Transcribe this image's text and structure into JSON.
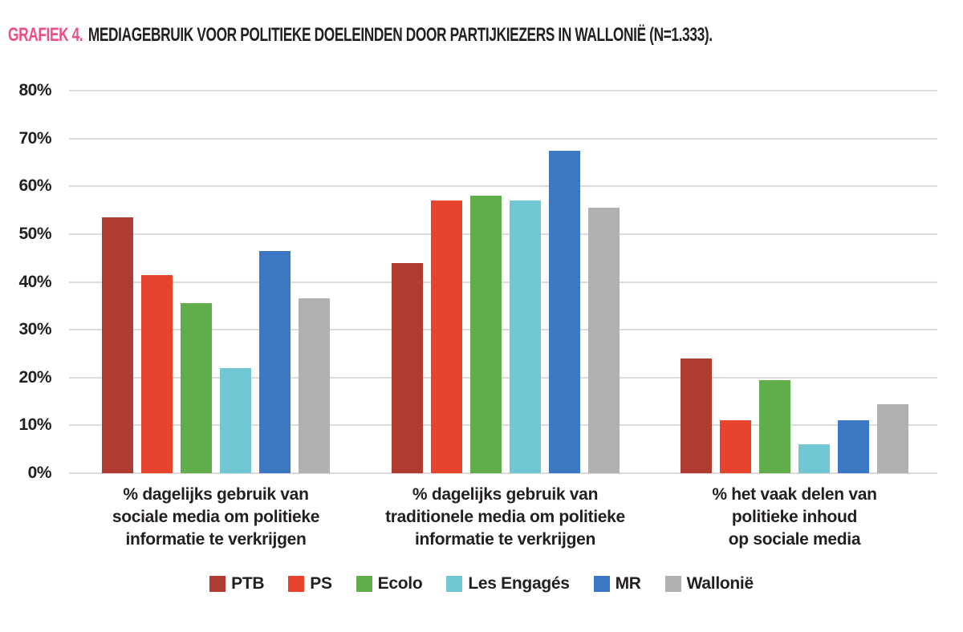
{
  "title": {
    "prefix": "GRAFIEK 4.",
    "text": "MEDIAGEBRUIK VOOR POLITIEKE DOELEINDEN DOOR PARTIJKIEZERS IN WALLONIË (N=1.333).",
    "prefix_color": "#ee4e86"
  },
  "chart_data": {
    "type": "bar",
    "title": "GRAFIEK 4. MEDIAGEBRUIK VOOR POLITIEKE DOELEINDEN DOOR PARTIJKIEZERS IN WALLONIË (N=1.333).",
    "categories": [
      "% dagelijks gebruik van sociale media om politieke informatie te verkrijgen",
      "% dagelijks gebruik van traditionele media om politieke informatie te verkrijgen",
      "% het vaak delen van politieke inhoud op sociale media"
    ],
    "category_lines": [
      [
        "% dagelijks gebruik van",
        "sociale media om politieke",
        "informatie te verkrijgen"
      ],
      [
        "% dagelijks gebruik van",
        "traditionele media om politieke",
        "informatie te verkrijgen"
      ],
      [
        "% het vaak delen van",
        "politieke inhoud",
        "op sociale media"
      ]
    ],
    "series": [
      {
        "name": "PTB",
        "color": "#af3b31",
        "values": [
          53.5,
          44.0,
          24.0
        ]
      },
      {
        "name": "PS",
        "color": "#e8432d",
        "values": [
          41.5,
          57.0,
          11.0
        ]
      },
      {
        "name": "Ecolo",
        "color": "#5fae4a",
        "values": [
          35.5,
          58.0,
          19.5
        ]
      },
      {
        "name": "Les Engagés",
        "color": "#72c7d4",
        "values": [
          22.0,
          57.0,
          6.0
        ]
      },
      {
        "name": "MR",
        "color": "#3d76c3",
        "values": [
          46.5,
          67.5,
          11.0
        ]
      },
      {
        "name": "Wallonië",
        "color": "#b1b1b1",
        "values": [
          36.5,
          55.5,
          14.5
        ]
      }
    ],
    "xlabel": "",
    "ylabel": "",
    "ylim": [
      0,
      80
    ],
    "yticks": [
      "0%",
      "10%",
      "20%",
      "30%",
      "40%",
      "50%",
      "60%",
      "70%",
      "80%"
    ],
    "grid": true,
    "gridline_color": "#dbdbdb",
    "legend_position": "bottom"
  }
}
